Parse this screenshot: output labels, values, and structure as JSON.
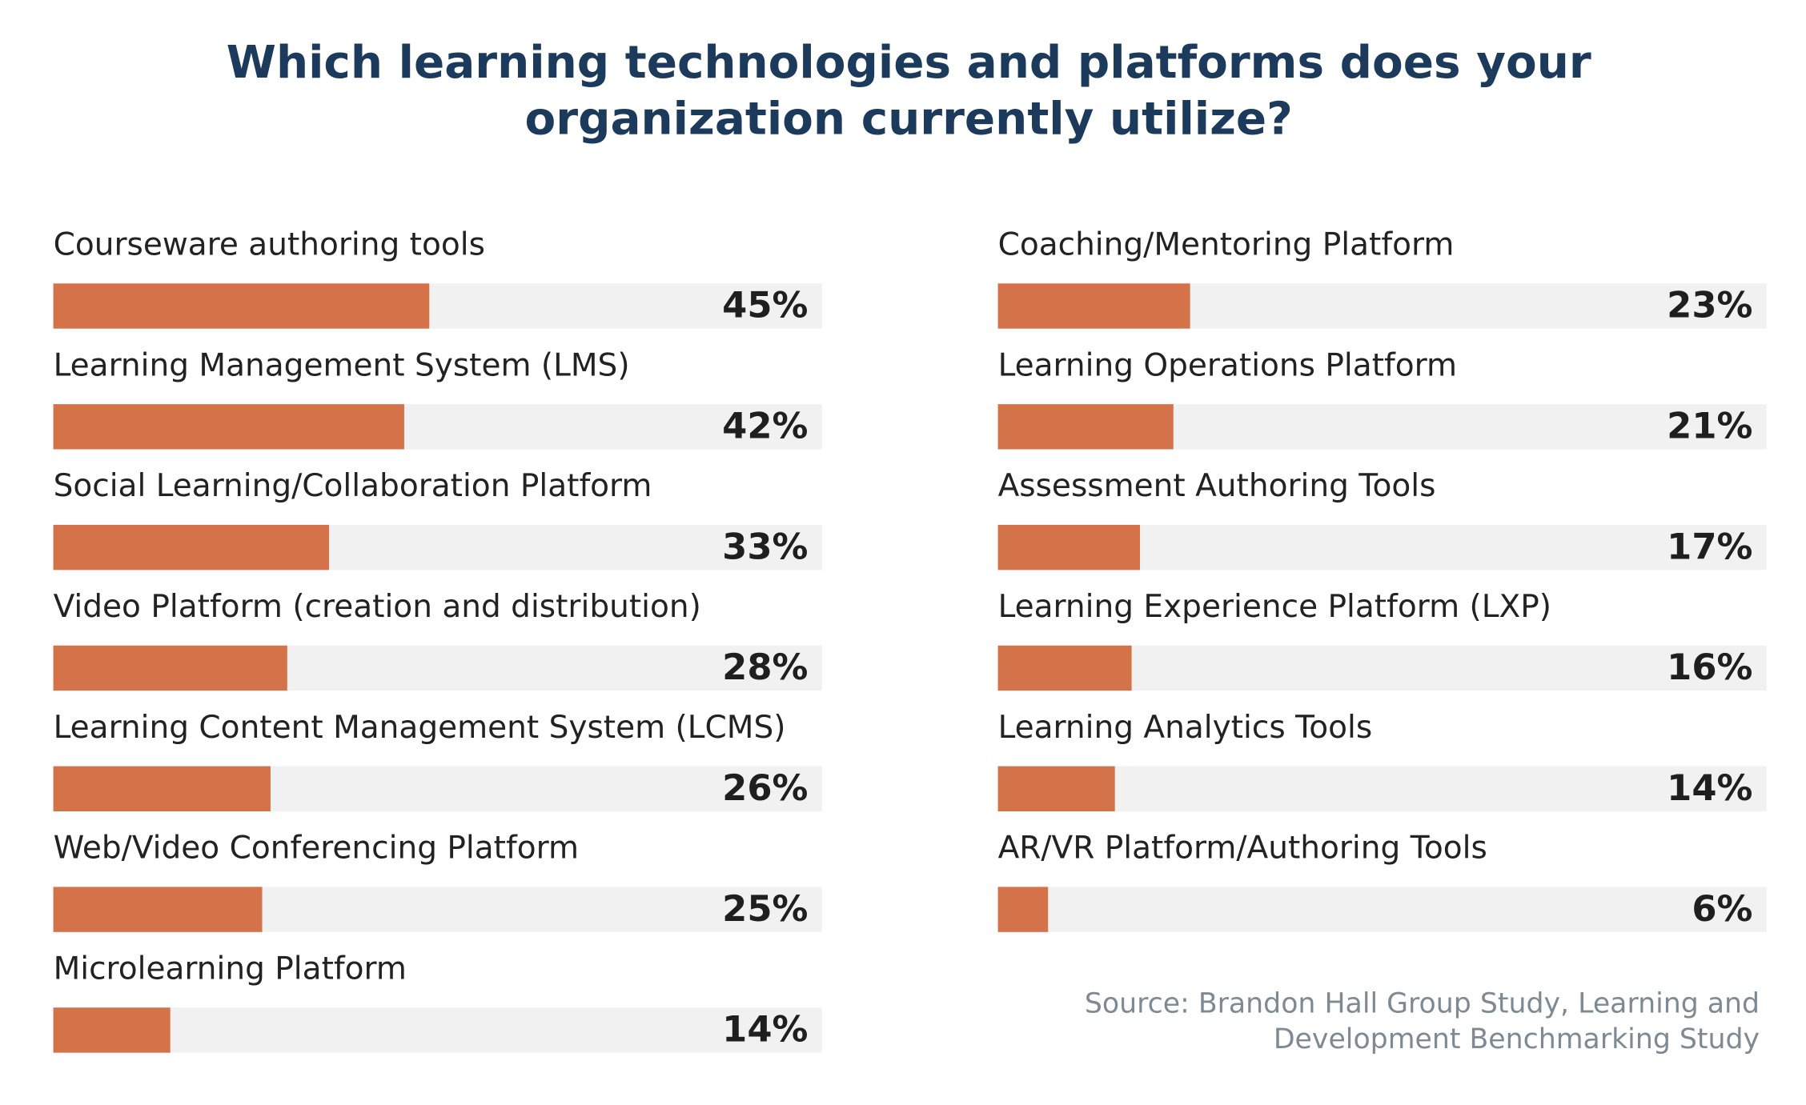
{
  "title": "Which learning technologies and platforms does your organization currently utilize?",
  "source": "Source: Brandon Hall Group Study, Learning and Development Benchmarking Study",
  "chart_data": [
    {
      "type": "bar",
      "orientation": "horizontal",
      "color": "#d4734a",
      "track_color": "#f0f1f0",
      "xlim": [
        0,
        92
      ],
      "categories": [
        "Courseware authoring tools",
        "Learning Management System (LMS)",
        "Social Learning/Collaboration Platform",
        "Video Platform (creation and distribution)",
        "Learning Content Management System (LCMS)",
        "Web/Video Conferencing Platform",
        "Microlearning Platform"
      ],
      "values": [
        45,
        42,
        33,
        28,
        26,
        25,
        14
      ],
      "value_labels": [
        "45%",
        "42%",
        "33%",
        "28%",
        "26%",
        "25%",
        "14%"
      ]
    },
    {
      "type": "bar",
      "orientation": "horizontal",
      "color": "#d4734a",
      "track_color": "#f0f1f0",
      "xlim": [
        0,
        92
      ],
      "categories": [
        "Coaching/Mentoring Platform",
        "Learning Operations Platform",
        "Assessment Authoring Tools",
        "Learning Experience Platform (LXP)",
        "Learning Analytics Tools",
        "AR/VR Platform/Authoring Tools"
      ],
      "values": [
        23,
        21,
        17,
        16,
        14,
        6
      ],
      "value_labels": [
        "23%",
        "21%",
        "17%",
        "16%",
        "14%",
        "6%"
      ]
    }
  ]
}
